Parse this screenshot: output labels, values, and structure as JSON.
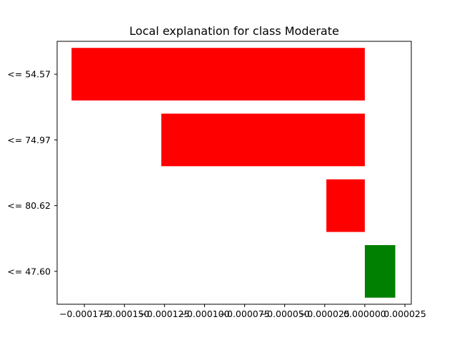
{
  "chart_data": {
    "type": "bar",
    "orientation": "horizontal",
    "title": "Local explanation for class Moderate",
    "xlabel": "",
    "ylabel": "",
    "categories": [
      "<= 54.57",
      "<= 74.97",
      "<= 80.62",
      "<= 47.60"
    ],
    "values": [
      -0.000183,
      -0.000127,
      -2.4e-05,
      1.9e-05
    ],
    "bar_colors": [
      "#ff0000",
      "#ff0000",
      "#ff0000",
      "#008000"
    ],
    "xlim": [
      -0.000192,
      2.9e-05
    ],
    "xticks": [
      -0.000175,
      -0.00015,
      -0.000125,
      -0.0001,
      -7.5e-05,
      -5e-05,
      -2.5e-05,
      0.0,
      2.5e-05
    ],
    "xtick_labels": [
      "−0.000175",
      "−0.000150",
      "−0.000125",
      "−0.000100",
      "−0.000075",
      "−0.000050",
      "−0.000025",
      "0.000000",
      "0.000025"
    ],
    "grid": false,
    "legend": "none"
  }
}
